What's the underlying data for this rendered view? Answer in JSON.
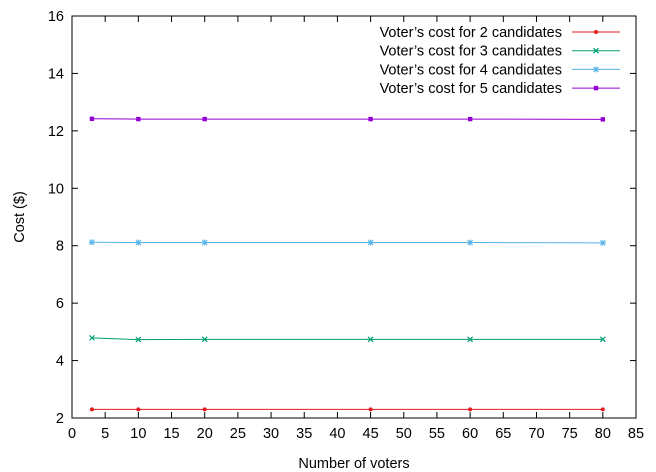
{
  "chart_data": {
    "type": "line",
    "xlabel": "Number of voters",
    "ylabel": "Cost ($)",
    "xlim": [
      0,
      85
    ],
    "ylim": [
      2,
      16
    ],
    "x_ticks": [
      "0",
      "5",
      "10",
      "15",
      "20",
      "25",
      "30",
      "35",
      "40",
      "45",
      "50",
      "55",
      "60",
      "65",
      "70",
      "75",
      "80",
      "85"
    ],
    "y_ticks": [
      "2",
      "4",
      "6",
      "8",
      "10",
      "12",
      "14",
      "16"
    ],
    "grid": false,
    "legend_position": "top-right",
    "x": [
      3,
      10,
      20,
      45,
      60,
      80
    ],
    "series": [
      {
        "name": "Voter’s cost for 2 candidates",
        "color": "#e41a1c",
        "marker": "dot",
        "values": [
          2.3,
          2.3,
          2.3,
          2.3,
          2.3,
          2.3
        ]
      },
      {
        "name": "Voter’s cost for 3 candidates",
        "color": "#009e73",
        "marker": "x",
        "values": [
          4.79,
          4.73,
          4.74,
          4.74,
          4.74,
          4.74
        ]
      },
      {
        "name": "Voter’s cost for 4 candidates",
        "color": "#56b4e9",
        "marker": "star",
        "values": [
          8.12,
          8.11,
          8.11,
          8.11,
          8.11,
          8.1
        ]
      },
      {
        "name": "Voter’s cost for 5 candidates",
        "color": "#9400d3",
        "marker": "square",
        "values": [
          12.42,
          12.41,
          12.41,
          12.41,
          12.41,
          12.4
        ]
      }
    ]
  }
}
